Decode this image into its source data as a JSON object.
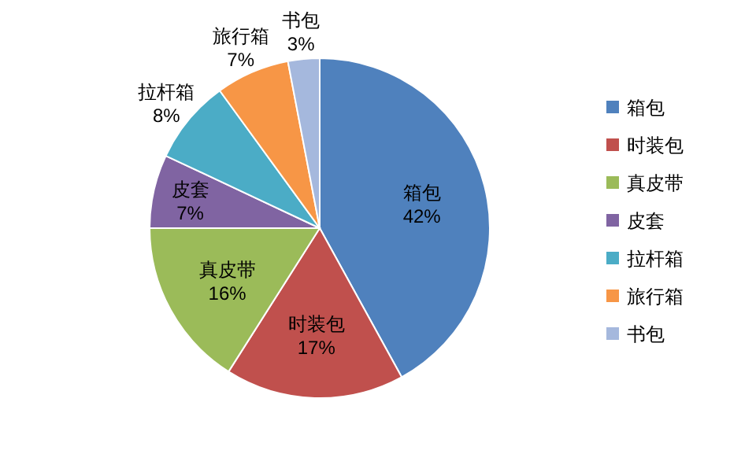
{
  "chart_data": {
    "type": "pie",
    "categories": [
      "箱包",
      "时装包",
      "真皮带",
      "皮套",
      "拉杆箱",
      "旅行箱",
      "书包"
    ],
    "values": [
      42,
      17,
      16,
      7,
      8,
      7,
      3
    ],
    "value_labels": [
      "42%",
      "17%",
      "16%",
      "7%",
      "8%",
      "7%",
      "3%"
    ],
    "colors": [
      "#4f81bd",
      "#c0504d",
      "#9bbb59",
      "#8064a2",
      "#4bacc6",
      "#f79646",
      "#a5b8dd"
    ],
    "legend": "right"
  }
}
